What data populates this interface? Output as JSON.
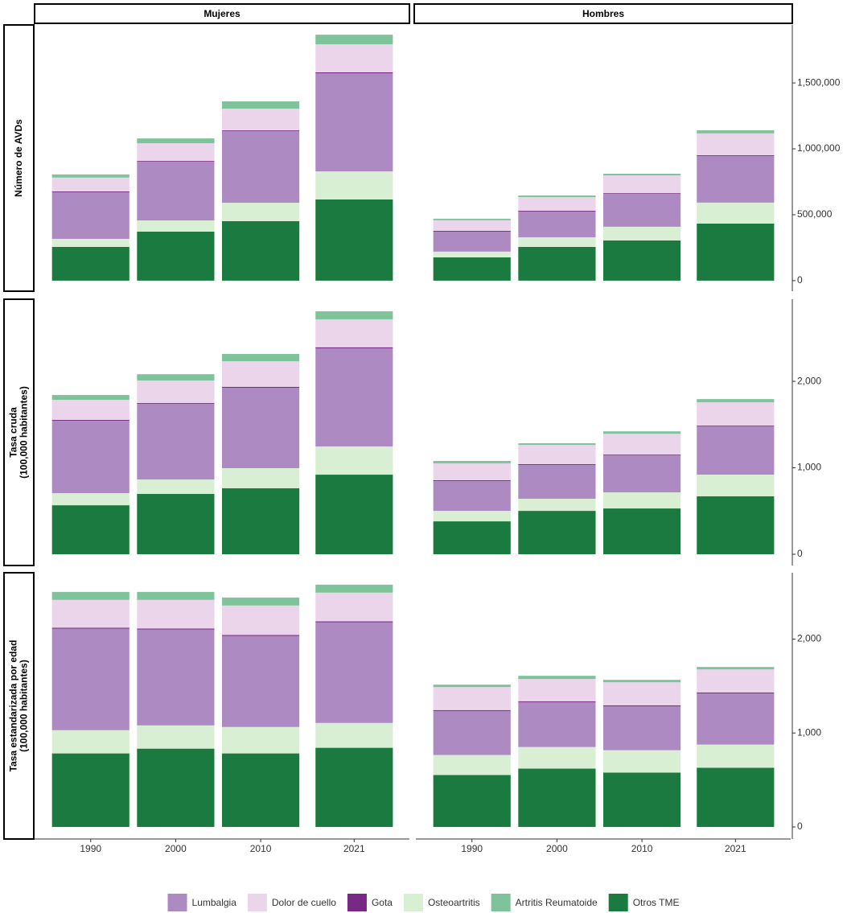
{
  "chart_data": {
    "type": "bar",
    "stacked": true,
    "columns": [
      "Mujeres",
      "Hombres"
    ],
    "x": [
      1990,
      2000,
      2010,
      2021
    ],
    "xlim": [
      1983.4,
      2027.5
    ],
    "xticks": [
      1990,
      2000,
      2010,
      2021
    ],
    "rows": [
      {
        "label": [
          "Número de AVDs"
        ],
        "ylim": [
          -80000,
          1940000
        ],
        "yticks": [
          0,
          {
            "value": 500000,
            "label": "500,000"
          },
          {
            "value": 1000000,
            "label": "1,000,000"
          },
          {
            "value": 1500000,
            "label": "1,500,000"
          }
        ]
      },
      {
        "label": [
          "Tasa cruda",
          "(100,000 habitantes)"
        ],
        "ylim": [
          -130,
          2950
        ],
        "yticks": [
          0,
          {
            "value": 1000,
            "label": "1,000"
          },
          {
            "value": 2000,
            "label": "2,000"
          }
        ]
      },
      {
        "label": [
          "Tasa estandarizada por edad",
          "(100,000 habitantes)"
        ],
        "ylim": [
          -128,
          2706
        ],
        "yticks": [
          0,
          {
            "value": 1000,
            "label": "1,000"
          },
          {
            "value": 2000,
            "label": "2,000"
          }
        ]
      }
    ],
    "series": [
      {
        "name": "Lumbalgia",
        "color": "#ad8bc2",
        "values": [
          [
            [
              354000,
              445000,
              543000,
              744000
            ],
            [
              152000,
              195000,
              250000,
              354000
            ]
          ],
          [
            [
              837,
              874,
              930,
              1135
            ],
            [
              344,
              390,
              427,
              557
            ]
          ],
          [
            [
              1081,
              1021,
              970,
              1072
            ],
            [
              468,
              477,
              468,
              545
            ]
          ]
        ]
      },
      {
        "name": "Dolor de cuello",
        "color": "#ead5ea",
        "values": [
          [
            [
              105000,
              134000,
              165000,
              212000
            ],
            [
              80000,
              104000,
              135000,
              165000
            ]
          ],
          [
            [
              232,
              260,
              297,
              323
            ],
            [
              195,
              223,
              241,
              270
            ]
          ],
          [
            [
              296,
              305,
              313,
              305
            ],
            [
              245,
              237,
              245,
              245
            ]
          ]
        ]
      },
      {
        "name": "Gota",
        "color": "#762a83",
        "values": [
          [
            [
              6000,
              6000,
              6000,
              8000
            ],
            [
              6000,
              6000,
              5000,
              6000
            ]
          ],
          [
            [
              10,
              10,
              10,
              12
            ],
            [
              10,
              10,
              10,
              10
            ]
          ],
          [
            [
              10,
              10,
              10,
              10
            ],
            [
              10,
              10,
              10,
              10
            ]
          ]
        ]
      },
      {
        "name": "Osteoartritis",
        "color": "#d9efd3",
        "values": [
          [
            [
              61000,
              85000,
              140000,
              213000
            ],
            [
              43000,
              73000,
              104000,
              159000
            ]
          ],
          [
            [
              140,
              167,
              233,
              326
            ],
            [
              121,
              140,
              186,
              251
            ]
          ],
          [
            [
              247,
              247,
              281,
              264
            ],
            [
              213,
              230,
              238,
              247
            ]
          ]
        ]
      },
      {
        "name": "Artritis Reumatoide",
        "color": "#7fc39a",
        "values": [
          [
            [
              24000,
              37000,
              55000,
              73000
            ],
            [
              12000,
              12000,
              12000,
              24000
            ]
          ],
          [
            [
              56,
              74,
              84,
              93
            ],
            [
              28,
              19,
              28,
              37
            ]
          ],
          [
            [
              85,
              85,
              85,
              85
            ],
            [
              26,
              34,
              26,
              26
            ]
          ]
        ]
      },
      {
        "name": "Otros TME",
        "color": "#1b7a3f",
        "values": [
          [
            [
              256000,
              372000,
              451000,
              616000
            ],
            [
              177000,
              256000,
              305000,
              433000
            ]
          ],
          [
            [
              567,
              698,
              763,
              921
            ],
            [
              381,
              502,
              530,
              670
            ]
          ],
          [
            [
              783,
              834,
              783,
              843
            ],
            [
              553,
              621,
              579,
              630
            ]
          ]
        ]
      }
    ],
    "legend": "bottom"
  }
}
